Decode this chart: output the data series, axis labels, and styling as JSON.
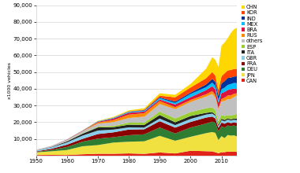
{
  "ylabel": "x1000 vehicles",
  "years": [
    1950,
    1955,
    1960,
    1965,
    1970,
    1975,
    1980,
    1985,
    1990,
    1995,
    2000,
    2005,
    2007,
    2008,
    2009,
    2010,
    2011,
    2012,
    2013,
    2014,
    2015
  ],
  "series": {
    "CAN": [
      388,
      452,
      393,
      846,
      1160,
      1145,
      1374,
      1101,
      1946,
      1339,
      2962,
      2687,
      2578,
      2078,
      1490,
      2071,
      2135,
      2463,
      2380,
      2395,
      2283
    ],
    "JPN": [
      1600,
      2200,
      3000,
      4800,
      5200,
      6700,
      7000,
      7500,
      9945,
      7611,
      8363,
      10800,
      11596,
      11576,
      7934,
      9626,
      8399,
      9943,
      9630,
      9775,
      9278
    ],
    "DEU": [
      320,
      755,
      1817,
      2734,
      3842,
      3185,
      3878,
      4168,
      4977,
      4360,
      5527,
      5758,
      6213,
      6041,
      5209,
      5906,
      6311,
      5649,
      5720,
      5907,
      6033
    ],
    "FRA": [
      257,
      725,
      1369,
      1642,
      2750,
      2930,
      3378,
      3016,
      3769,
      3475,
      3348,
      3549,
      3016,
      2569,
      2048,
      2229,
      2255,
      1967,
      1746,
      1821,
      1970
    ],
    "GBR": [
      523,
      897,
      1353,
      1970,
      2098,
      1648,
      1312,
      1048,
      1566,
      1532,
      1814,
      1803,
      1750,
      1650,
      999,
      1393,
      1464,
      1577,
      1597,
      1599,
      1682
    ],
    "ITA": [
      101,
      230,
      596,
      1104,
      1854,
      1459,
      1612,
      1573,
      2121,
      1668,
      1738,
      1038,
      910,
      659,
      843,
      838,
      790,
      672,
      658,
      697,
      1014
    ],
    "ESP": [
      0,
      10,
      43,
      143,
      445,
      799,
      1182,
      1418,
      2053,
      2333,
      2366,
      2752,
      2889,
      2541,
      2170,
      2388,
      2374,
      1979,
      2163,
      2402,
      2733
    ],
    "others": [
      300,
      500,
      800,
      1200,
      1800,
      2200,
      2800,
      3500,
      4500,
      5500,
      6000,
      7000,
      8000,
      7500,
      7000,
      8000,
      9000,
      9500,
      10000,
      10500,
      11000
    ],
    "RUS": [
      0,
      0,
      100,
      200,
      700,
      1200,
      2000,
      2100,
      1800,
      1200,
      1200,
      1350,
      1660,
      1790,
      725,
      1403,
      1988,
      2232,
      2173,
      1895,
      1385
    ],
    "BRA": [
      0,
      50,
      133,
      225,
      416,
      930,
      1165,
      966,
      914,
      1629,
      1681,
      2529,
      2977,
      3215,
      3183,
      3648,
      3407,
      3342,
      3712,
      3146,
      2429
    ],
    "MEX": [
      0,
      20,
      50,
      100,
      200,
      358,
      490,
      450,
      820,
      935,
      1936,
      1684,
      2095,
      2167,
      1561,
      2261,
      2558,
      3001,
      3054,
      3365,
      3565
    ],
    "IND": [
      0,
      0,
      30,
      50,
      100,
      150,
      200,
      350,
      500,
      800,
      796,
      1641,
      2254,
      2315,
      2634,
      3537,
      3936,
      4145,
      3880,
      3840,
      4109
    ],
    "KOR": [
      0,
      0,
      0,
      0,
      28,
      37,
      123,
      378,
      987,
      2526,
      3115,
      3699,
      4086,
      3826,
      3513,
      4272,
      4657,
      4562,
      4521,
      4524,
      4556
    ],
    "CHN": [
      0,
      0,
      0,
      50,
      200,
      400,
      600,
      800,
      1400,
      1500,
      2069,
      5708,
      8882,
      9345,
      13791,
      18265,
      18418,
      19272,
      22117,
      23722,
      24504
    ]
  },
  "colors": {
    "CAN": "#e2231a",
    "JPN": "#f0e040",
    "DEU": "#2e7d32",
    "FRA": "#8b0000",
    "GBR": "#87ceeb",
    "ITA": "#222222",
    "ESP": "#9acd32",
    "others": "#c0c0c0",
    "RUS": "#ff8c00",
    "BRA": "#dc143c",
    "MEX": "#00bfff",
    "IND": "#003399",
    "KOR": "#ff4500",
    "CHN": "#ffd700"
  },
  "legend_order": [
    "CHN",
    "KOR",
    "IND",
    "MEX",
    "BRA",
    "RUS",
    "others",
    "ESP",
    "ITA",
    "GBR",
    "FRA",
    "DEU",
    "JPN",
    "CAN"
  ],
  "ylim": [
    0,
    90000
  ],
  "yticks": [
    10000,
    20000,
    30000,
    40000,
    50000,
    60000,
    70000,
    80000,
    90000
  ],
  "xticks": [
    1950,
    1960,
    1970,
    1980,
    1990,
    2000,
    2010
  ],
  "background_color": "#ffffff"
}
